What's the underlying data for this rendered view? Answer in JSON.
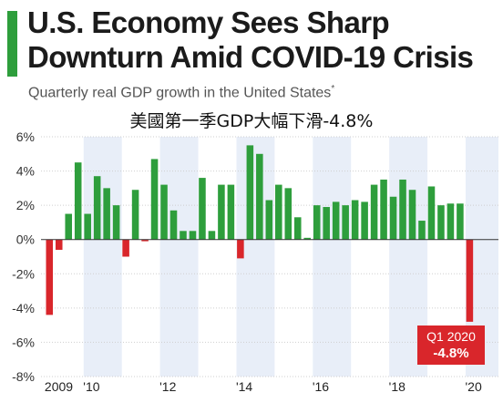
{
  "header": {
    "title_line1": "U.S. Economy Sees Sharp",
    "title_line2": "Downturn Amid COVID-19 Crisis",
    "subtitle": "Quarterly real GDP growth in the United States",
    "subtitle_mark": "*",
    "cn_note": "美國第一季GDP大幅下滑-4.8%"
  },
  "colors": {
    "positive": "#2e9e3c",
    "negative": "#d9262b",
    "band": "#e8eef8",
    "grid": "#cfcfcf",
    "zero_line": "#333333"
  },
  "callout": {
    "label": "Q1 2020",
    "value": "-4.8%"
  },
  "chart_data": {
    "type": "bar",
    "title": "Quarterly real GDP growth in the United States",
    "units": "%",
    "ylim": [
      -8,
      6
    ],
    "yticks": [
      "6%",
      "4%",
      "2%",
      "0%",
      "-2%",
      "-4%",
      "-6%",
      "-8%"
    ],
    "grid": true,
    "year_labels": [
      {
        "label": "2009",
        "year": 2009
      },
      {
        "label": "'10",
        "year": 2010
      },
      {
        "label": "'12",
        "year": 2012
      },
      {
        "label": "'14",
        "year": 2014
      },
      {
        "label": "'16",
        "year": 2016
      },
      {
        "label": "'18",
        "year": 2018
      },
      {
        "label": "'20",
        "year": 2020
      }
    ],
    "start_year": 2009,
    "values": [
      -4.4,
      -0.6,
      1.5,
      4.5,
      1.5,
      3.7,
      3.0,
      2.0,
      -1.0,
      2.9,
      -0.1,
      4.7,
      3.2,
      1.7,
      0.5,
      0.5,
      3.6,
      0.5,
      3.2,
      3.2,
      -1.1,
      5.5,
      5.0,
      2.3,
      3.2,
      3.0,
      1.3,
      0.1,
      2.0,
      1.9,
      2.2,
      2.0,
      2.3,
      2.2,
      3.2,
      3.5,
      2.5,
      3.5,
      2.9,
      1.1,
      3.1,
      2.0,
      2.1,
      2.1,
      -4.8
    ]
  }
}
